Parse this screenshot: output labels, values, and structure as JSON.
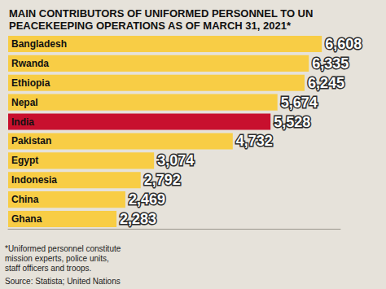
{
  "chart_data": {
    "type": "bar",
    "orientation": "horizontal",
    "title": "MAIN CONTRIBUTORS OF UNIFORMED PERSONNEL TO UN PEACEKEEPING OPERATIONS AS OF MARCH 31, 2021*",
    "footnote": "*Uniformed personnel constitute mission experts, police units, staff officers and troops.",
    "source": "Source: Statista; United Nations",
    "categories": [
      "Bangladesh",
      "Rwanda",
      "Ethiopia",
      "Nepal",
      "India",
      "Pakistan",
      "Egypt",
      "Indonesia",
      "China",
      "Ghana"
    ],
    "values": [
      6608,
      6335,
      6245,
      5674,
      5528,
      4732,
      3074,
      2792,
      2469,
      2283
    ],
    "value_labels": [
      "6,608",
      "6,335",
      "6,245",
      "5,674",
      "5,528",
      "4,732",
      "3,074",
      "2,792",
      "2,469",
      "2,283"
    ],
    "colors": [
      "#f8cd45",
      "#f8cd45",
      "#f8cd45",
      "#f8cd45",
      "#c8102e",
      "#f8cd45",
      "#f8cd45",
      "#f8cd45",
      "#f8cd45",
      "#f8cd45"
    ],
    "xlim": [
      0,
      7000
    ],
    "data_labels": true,
    "tick_labels": "y",
    "grid": false
  }
}
